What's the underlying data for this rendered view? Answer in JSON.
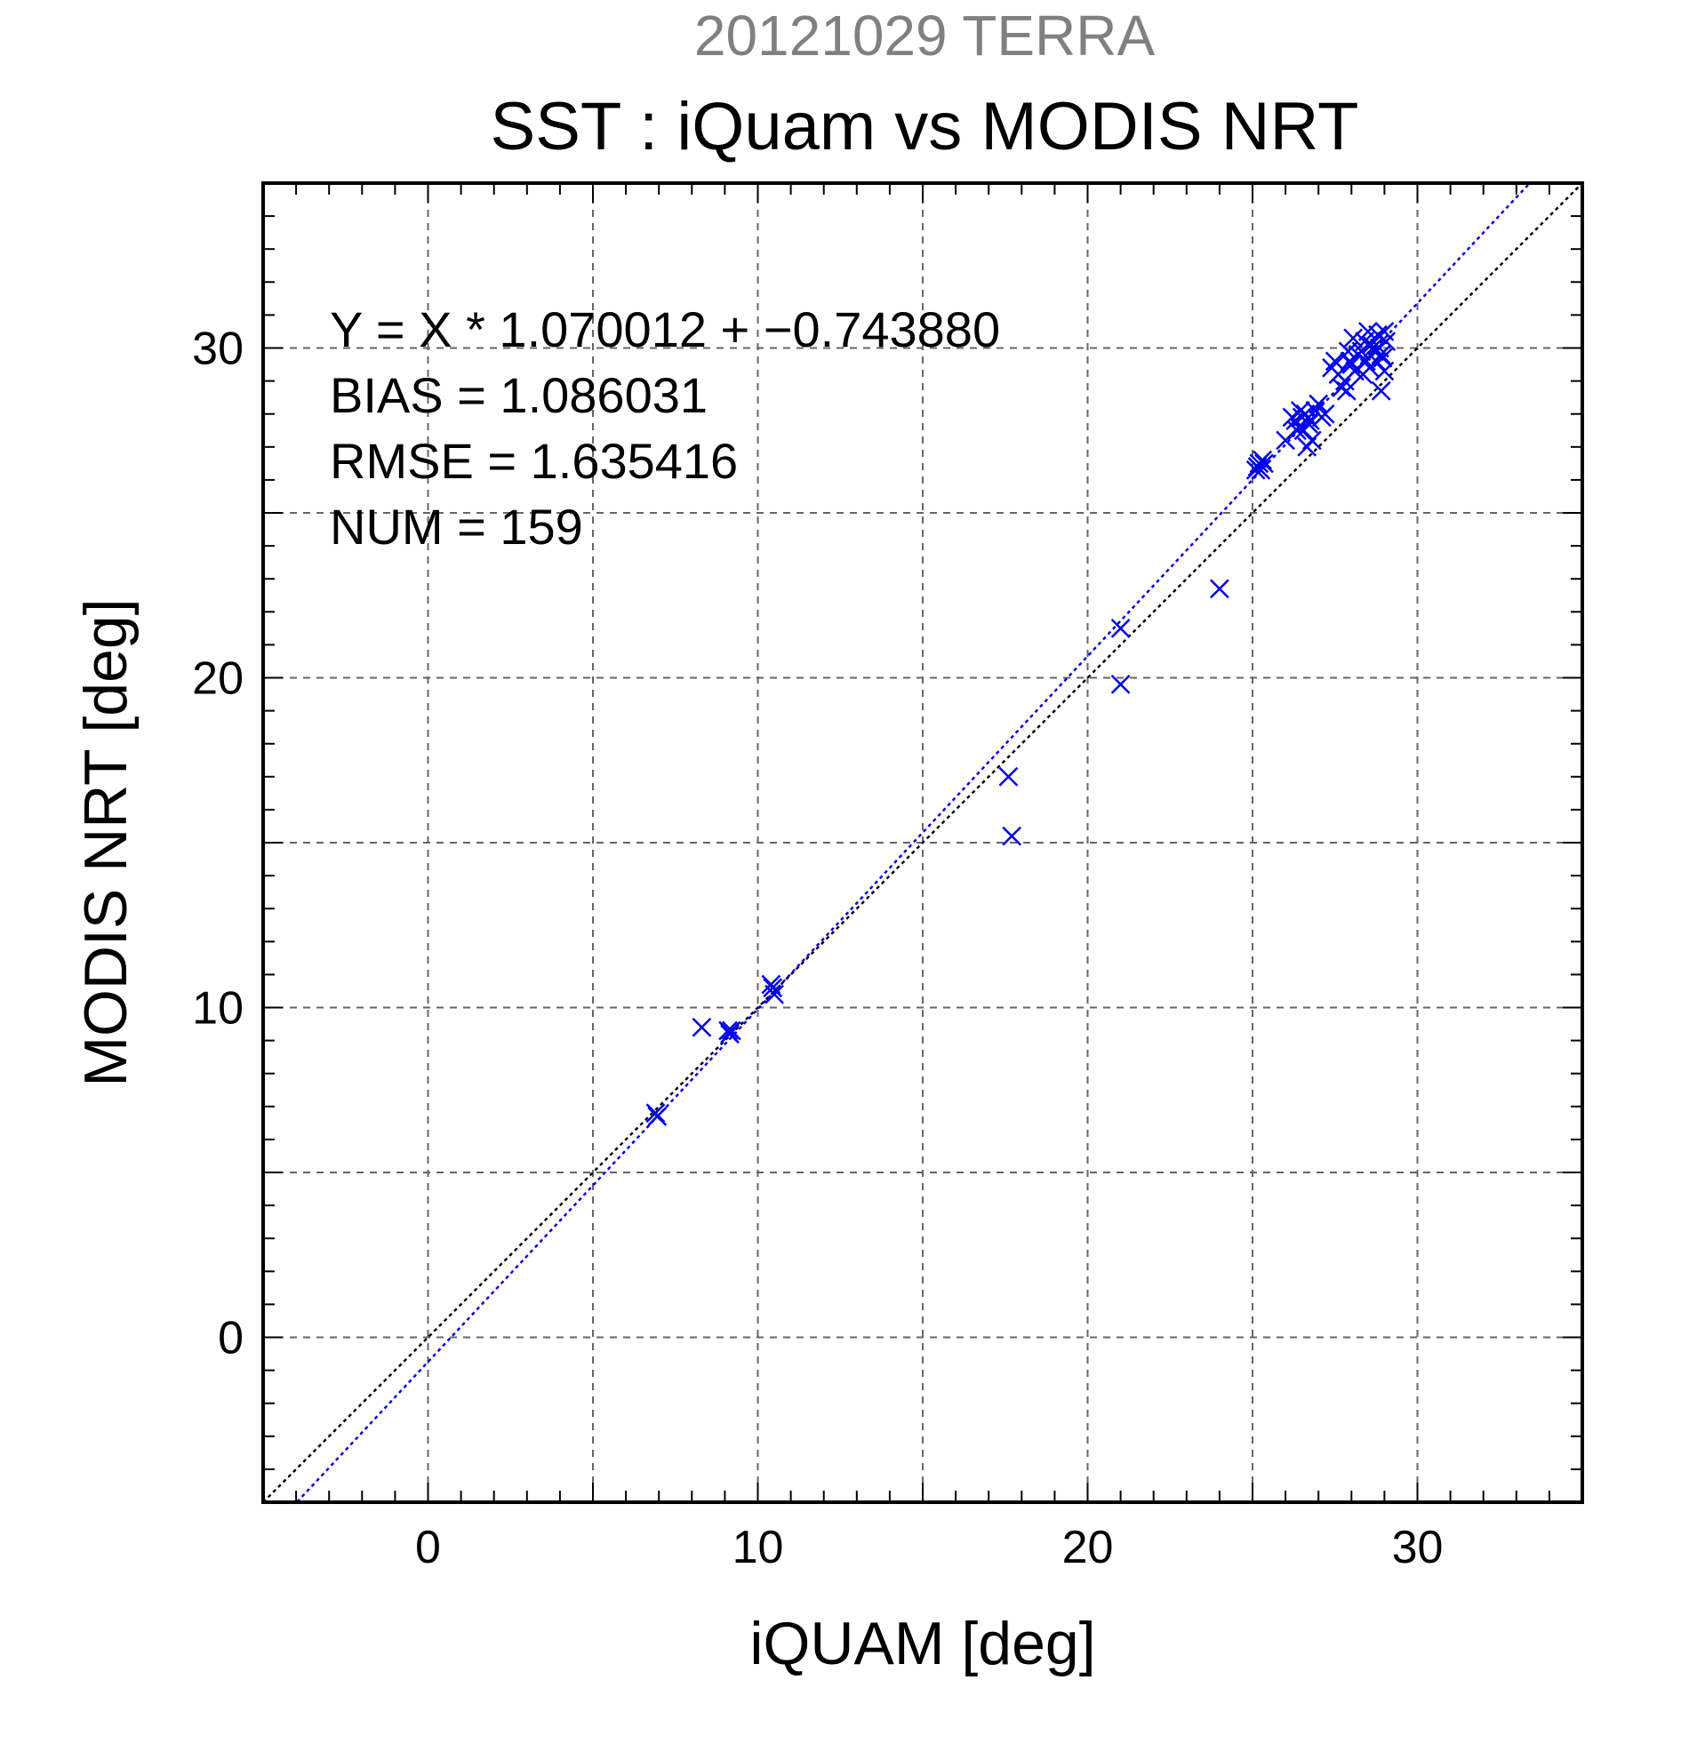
{
  "chart_data": {
    "type": "scatter",
    "supertitle": "20121029 TERRA",
    "title": "SST : iQuam vs MODIS NRT",
    "xlabel": "iQUAM [deg]",
    "ylabel": "MODIS NRT [deg]",
    "xlim": [
      -5,
      35
    ],
    "ylim": [
      -5,
      35
    ],
    "xticks": [
      0,
      10,
      20,
      30
    ],
    "yticks": [
      0,
      10,
      20,
      30
    ],
    "grid": true,
    "stats": [
      "Y = X * 1.070012 + −0.743880",
      "BIAS = 1.086031",
      "RMSE = 1.635416",
      "NUM = 159"
    ],
    "fit": {
      "slope": 1.070012,
      "intercept": -0.74388
    },
    "colors": {
      "points": "#0000ee",
      "fit_line": "#0000ee",
      "identity_line": "#000000",
      "supertitle": "#808080",
      "grid": "#666666"
    },
    "series": [
      {
        "marker": "x",
        "points": [
          [
            6.9,
            6.8
          ],
          [
            6.95,
            6.7
          ],
          [
            8.3,
            9.4
          ],
          [
            9.1,
            9.3
          ],
          [
            9.15,
            9.2
          ],
          [
            9.2,
            9.3
          ],
          [
            10.4,
            10.7
          ],
          [
            10.5,
            10.4
          ],
          [
            10.45,
            10.6
          ],
          [
            17.6,
            17.0
          ],
          [
            17.7,
            15.2
          ],
          [
            21.0,
            21.5
          ],
          [
            21.0,
            19.8
          ],
          [
            24.0,
            22.7
          ],
          [
            25.1,
            26.3
          ],
          [
            25.2,
            26.5
          ],
          [
            25.3,
            26.6
          ],
          [
            25.25,
            26.3
          ],
          [
            25.15,
            26.4
          ],
          [
            25.35,
            26.5
          ],
          [
            26.0,
            27.2
          ],
          [
            26.2,
            27.9
          ],
          [
            26.3,
            27.8
          ],
          [
            26.4,
            27.6
          ],
          [
            26.5,
            27.9
          ],
          [
            26.6,
            28.0
          ],
          [
            26.7,
            27.7
          ],
          [
            26.8,
            27.2
          ],
          [
            26.9,
            28.1
          ],
          [
            27.0,
            28.3
          ],
          [
            27.1,
            27.9
          ],
          [
            26.55,
            27.5
          ],
          [
            26.45,
            28.1
          ],
          [
            26.75,
            27.8
          ],
          [
            26.65,
            27.0
          ],
          [
            26.35,
            27.5
          ],
          [
            27.2,
            28.0
          ],
          [
            27.4,
            29.4
          ],
          [
            27.5,
            29.6
          ],
          [
            27.6,
            29.2
          ],
          [
            27.7,
            28.8
          ],
          [
            27.8,
            29.0
          ],
          [
            27.9,
            29.9
          ],
          [
            28.0,
            29.5
          ],
          [
            28.05,
            30.3
          ],
          [
            28.1,
            29.3
          ],
          [
            28.2,
            29.8
          ],
          [
            27.85,
            28.7
          ],
          [
            27.95,
            29.6
          ],
          [
            28.3,
            29.9
          ],
          [
            28.4,
            30.2
          ],
          [
            28.5,
            30.5
          ],
          [
            28.6,
            30.1
          ],
          [
            28.7,
            29.9
          ],
          [
            28.8,
            30.4
          ],
          [
            28.9,
            29.8
          ],
          [
            29.0,
            30.5
          ],
          [
            29.05,
            30.2
          ],
          [
            28.55,
            29.4
          ],
          [
            28.65,
            30.0
          ],
          [
            28.75,
            29.6
          ],
          [
            28.85,
            30.0
          ],
          [
            28.95,
            29.7
          ],
          [
            28.45,
            29.6
          ],
          [
            28.35,
            29.2
          ],
          [
            28.9,
            28.7
          ],
          [
            29.0,
            29.3
          ]
        ]
      }
    ]
  }
}
